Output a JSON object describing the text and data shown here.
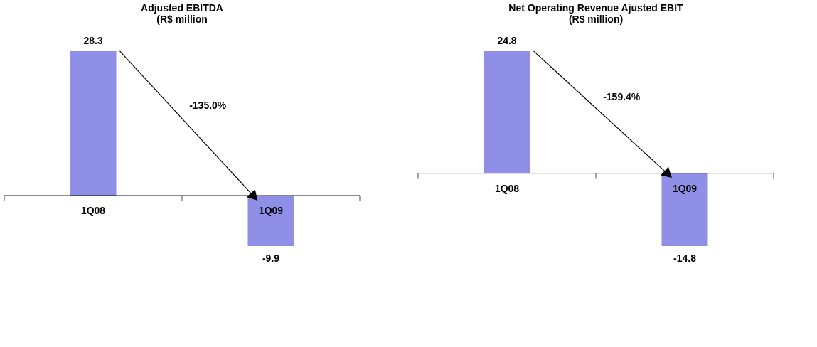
{
  "chart_data": [
    {
      "type": "bar",
      "title": "Adjusted EBITDA\n(R$ million",
      "categories": [
        "1Q08",
        "1Q09"
      ],
      "values": [
        28.3,
        -9.9
      ],
      "color": "#8f8fe8",
      "data_labels": true,
      "annotations": [
        "-135.0%"
      ]
    },
    {
      "type": "bar",
      "title": "Net Operating Revenue Ajusted EBIT\n(R$ million)",
      "categories": [
        "1Q08",
        "1Q09"
      ],
      "values": [
        24.8,
        -14.8
      ],
      "color": "#8f8fe8",
      "data_labels": true,
      "annotations": [
        "-159.4%"
      ]
    }
  ]
}
